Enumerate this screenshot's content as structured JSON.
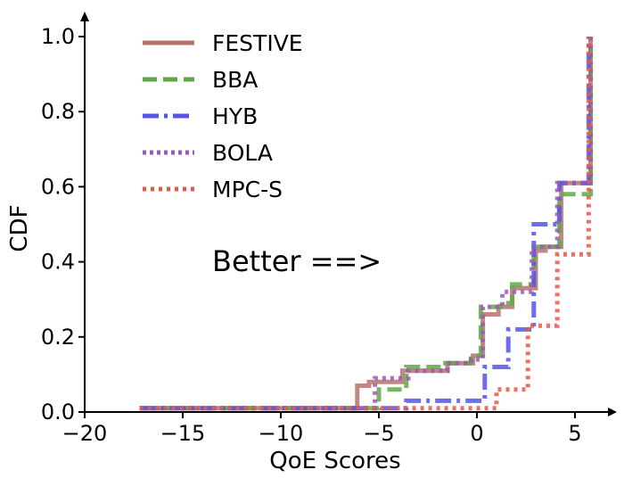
{
  "chart_data": {
    "type": "line",
    "subtype": "step-cdf",
    "title": "",
    "xlabel": "QoE Scores",
    "ylabel": "CDF",
    "xlim": [
      -20,
      7
    ],
    "ylim": [
      0,
      1.05
    ],
    "xticks": [
      -20,
      -15,
      -10,
      -5,
      0,
      5
    ],
    "xtick_labels": [
      "−20",
      "−15",
      "−10",
      "−5",
      "0",
      "5"
    ],
    "yticks": [
      0.0,
      0.2,
      0.4,
      0.6,
      0.8,
      1.0
    ],
    "ytick_labels": [
      "0.0",
      "0.2",
      "0.4",
      "0.6",
      "0.8",
      "1.0"
    ],
    "legend_position": "top-left",
    "annotation": "Better ==>",
    "series": [
      {
        "name": "FESTIVE",
        "color": "#b5736b",
        "style": "solid",
        "points": [
          [
            -17.2,
            0.01
          ],
          [
            -6.1,
            0.01
          ],
          [
            -6.1,
            0.07
          ],
          [
            -5.5,
            0.07
          ],
          [
            -5.5,
            0.08
          ],
          [
            -3.8,
            0.08
          ],
          [
            -3.8,
            0.11
          ],
          [
            -1.5,
            0.11
          ],
          [
            -1.5,
            0.13
          ],
          [
            -0.2,
            0.13
          ],
          [
            -0.2,
            0.15
          ],
          [
            0.3,
            0.15
          ],
          [
            0.3,
            0.26
          ],
          [
            1.1,
            0.26
          ],
          [
            1.1,
            0.28
          ],
          [
            1.8,
            0.28
          ],
          [
            1.8,
            0.33
          ],
          [
            3.0,
            0.33
          ],
          [
            3.0,
            0.43
          ],
          [
            3.5,
            0.43
          ],
          [
            3.5,
            0.44
          ],
          [
            4.3,
            0.44
          ],
          [
            4.3,
            0.61
          ],
          [
            5.8,
            0.61
          ],
          [
            5.8,
            1.0
          ]
        ]
      },
      {
        "name": "BBA",
        "color": "#5fa84a",
        "style": "dashed",
        "points": [
          [
            -17.2,
            0.01
          ],
          [
            -5.0,
            0.01
          ],
          [
            -5.0,
            0.06
          ],
          [
            -3.6,
            0.06
          ],
          [
            -3.6,
            0.12
          ],
          [
            -1.8,
            0.12
          ],
          [
            -1.8,
            0.13
          ],
          [
            -0.3,
            0.13
          ],
          [
            -0.3,
            0.15
          ],
          [
            0.2,
            0.15
          ],
          [
            0.2,
            0.28
          ],
          [
            1.2,
            0.28
          ],
          [
            1.2,
            0.29
          ],
          [
            1.8,
            0.29
          ],
          [
            1.8,
            0.34
          ],
          [
            2.9,
            0.34
          ],
          [
            2.9,
            0.44
          ],
          [
            4.2,
            0.44
          ],
          [
            4.2,
            0.58
          ],
          [
            5.8,
            0.58
          ],
          [
            5.8,
            1.0
          ]
        ]
      },
      {
        "name": "HYB",
        "color": "#5454ea",
        "style": "dashdot",
        "points": [
          [
            -17.2,
            0.01
          ],
          [
            -3.6,
            0.01
          ],
          [
            -3.6,
            0.03
          ],
          [
            0.4,
            0.03
          ],
          [
            0.4,
            0.12
          ],
          [
            1.6,
            0.12
          ],
          [
            1.6,
            0.22
          ],
          [
            2.9,
            0.22
          ],
          [
            2.9,
            0.5
          ],
          [
            4.2,
            0.5
          ],
          [
            4.2,
            0.61
          ],
          [
            5.7,
            0.61
          ],
          [
            5.7,
            1.0
          ]
        ]
      },
      {
        "name": "BOLA",
        "color": "#9b59b6",
        "style": "dotted",
        "points": [
          [
            -17.2,
            0.01
          ],
          [
            -5.2,
            0.01
          ],
          [
            -5.2,
            0.09
          ],
          [
            -3.5,
            0.09
          ],
          [
            -3.5,
            0.11
          ],
          [
            -1.5,
            0.11
          ],
          [
            -1.5,
            0.13
          ],
          [
            -0.3,
            0.13
          ],
          [
            -0.3,
            0.14
          ],
          [
            0.3,
            0.14
          ],
          [
            0.3,
            0.28
          ],
          [
            1.3,
            0.28
          ],
          [
            1.3,
            0.32
          ],
          [
            2.8,
            0.32
          ],
          [
            2.8,
            0.44
          ],
          [
            4.1,
            0.44
          ],
          [
            4.1,
            0.61
          ],
          [
            5.8,
            0.61
          ],
          [
            5.8,
            1.0
          ]
        ]
      },
      {
        "name": "MPC-S",
        "color": "#e8584a",
        "style": "dotted",
        "points": [
          [
            -17.2,
            0.01
          ],
          [
            1.0,
            0.01
          ],
          [
            1.0,
            0.06
          ],
          [
            2.6,
            0.06
          ],
          [
            2.6,
            0.23
          ],
          [
            4.1,
            0.23
          ],
          [
            4.1,
            0.42
          ],
          [
            5.7,
            0.42
          ],
          [
            5.7,
            1.0
          ]
        ]
      }
    ]
  }
}
